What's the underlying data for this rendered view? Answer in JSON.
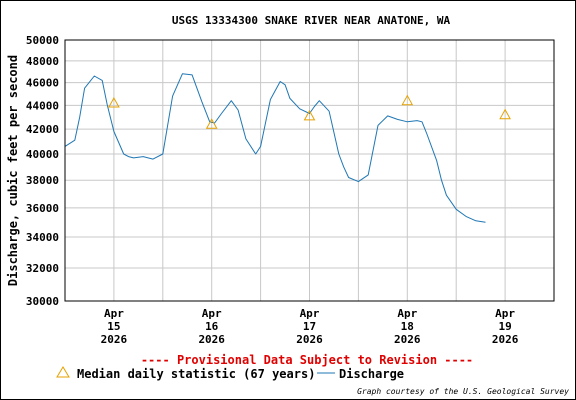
{
  "chart_data": {
    "type": "line",
    "title": "USGS 13334300 SNAKE RIVER NEAR ANATONE, WA",
    "ylabel": "Discharge, cubic feet per second",
    "xlabel": "",
    "ylim": [
      30000,
      50000
    ],
    "y_scale": "log",
    "y_ticks": [
      30000,
      32000,
      34000,
      36000,
      38000,
      40000,
      42000,
      44000,
      46000,
      48000,
      50000
    ],
    "y_tick_labels": [
      "30000",
      "32000",
      "34000",
      "36000",
      "38000",
      "40000",
      "42000",
      "44000",
      "46000",
      "48000",
      "50000"
    ],
    "x_range_days": [
      14.5,
      19.5
    ],
    "x_ticks": [
      {
        "day": 15,
        "line1": "Apr",
        "line2": "15",
        "line3": "2026"
      },
      {
        "day": 16,
        "line1": "Apr",
        "line2": "16",
        "line3": "2026"
      },
      {
        "day": 17,
        "line1": "Apr",
        "line2": "17",
        "line3": "2026"
      },
      {
        "day": 18,
        "line1": "Apr",
        "line2": "18",
        "line3": "2026"
      },
      {
        "day": 19,
        "line1": "Apr",
        "line2": "19",
        "line3": "2026"
      }
    ],
    "grid": true,
    "colors": {
      "discharge": "#1f77b4",
      "median": "#e6a100",
      "grid": "#c8c8c8",
      "provisional": "#e00000"
    },
    "series": [
      {
        "name": "Discharge",
        "marker": "line",
        "x": [
          14.5,
          14.6,
          14.65,
          14.7,
          14.8,
          14.88,
          14.93,
          15.0,
          15.1,
          15.15,
          15.2,
          15.3,
          15.4,
          15.5,
          15.6,
          15.7,
          15.8,
          15.9,
          15.98,
          16.03,
          16.1,
          16.2,
          16.27,
          16.35,
          16.45,
          16.5,
          16.6,
          16.7,
          16.75,
          16.8,
          16.9,
          17.0,
          17.05,
          17.1,
          17.2,
          17.3,
          17.35,
          17.4,
          17.5,
          17.6,
          17.7,
          17.8,
          17.9,
          18.0,
          18.1,
          18.15,
          18.2,
          18.3,
          18.35,
          18.4,
          18.5,
          18.6,
          18.7,
          18.8
        ],
        "y": [
          40600,
          41100,
          43000,
          45500,
          46600,
          46200,
          44100,
          41800,
          40000,
          39800,
          39700,
          39800,
          39600,
          40000,
          44800,
          46800,
          46700,
          44300,
          42600,
          42500,
          43300,
          44400,
          43600,
          41200,
          40000,
          40600,
          44500,
          46100,
          45800,
          44600,
          43700,
          43300,
          43900,
          44400,
          43500,
          40000,
          39000,
          38200,
          37900,
          38400,
          42300,
          43100,
          42800,
          42600,
          42700,
          42600,
          41600,
          39500,
          38000,
          36900,
          35900,
          35400,
          35100,
          35000
        ]
      },
      {
        "name": "Median daily statistic (67 years)",
        "marker": "triangle",
        "x": [
          15.0,
          16.0,
          17.0,
          18.0,
          19.0
        ],
        "y": [
          44200,
          42400,
          43100,
          44400,
          43200
        ]
      }
    ]
  },
  "provisional_text": "---- Provisional Data Subject to Revision ----",
  "legend": {
    "median_label": "Median daily statistic (67 years)",
    "discharge_label": "Discharge"
  },
  "credit": "Graph courtesy of the U.S. Geological Survey"
}
